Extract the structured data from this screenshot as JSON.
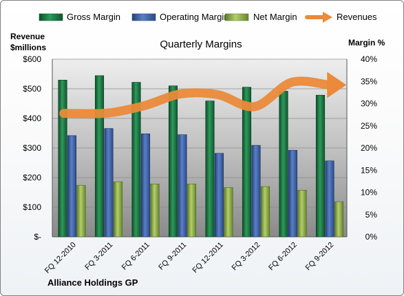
{
  "chart_data": {
    "type": "bar",
    "title": "Quarterly Margins",
    "footer": "Alliance Holdings GP",
    "left_axis_title": [
      "Revenue",
      "$millions"
    ],
    "right_axis_title": "Margin %",
    "categories": [
      "FQ 12-2010",
      "FQ 3-2011",
      "FQ 6-2011",
      "FQ 9-2011",
      "FQ 12-2011",
      "FQ 3-2012",
      "FQ 6-2012",
      "FQ 9-2012"
    ],
    "left_axis": {
      "min": 0,
      "max": 600,
      "step": 100,
      "tick_labels": [
        "$-",
        "$100",
        "$200",
        "$300",
        "$400",
        "$500",
        "$600"
      ]
    },
    "right_axis": {
      "min": 0,
      "max": 40,
      "step": 5,
      "tick_labels": [
        "0%",
        "5%",
        "10%",
        "15%",
        "20%",
        "25%",
        "30%",
        "35%",
        "40%"
      ]
    },
    "series": [
      {
        "name": "Gross Margin",
        "type": "bar",
        "axis": "right",
        "color": "#1f7a45",
        "values": [
          35.3,
          36.3,
          34.8,
          34.0,
          30.6,
          33.7,
          32.8,
          31.9
        ]
      },
      {
        "name": "Operating Margin",
        "type": "bar",
        "axis": "right",
        "color": "#3e62a8",
        "values": [
          22.8,
          24.4,
          23.2,
          23.0,
          18.8,
          20.6,
          19.5,
          17.1
        ]
      },
      {
        "name": "Net Margin",
        "type": "bar",
        "axis": "right",
        "color": "#8fae4a",
        "values": [
          11.6,
          12.4,
          11.9,
          11.9,
          11.1,
          11.3,
          10.5,
          7.9
        ]
      },
      {
        "name": "Revenues",
        "type": "line",
        "axis": "left",
        "color": "#ea8a3a",
        "values": [
          417,
          418,
          443,
          483,
          480,
          440,
          522,
          513
        ]
      }
    ],
    "grid": true,
    "legend": "top"
  }
}
